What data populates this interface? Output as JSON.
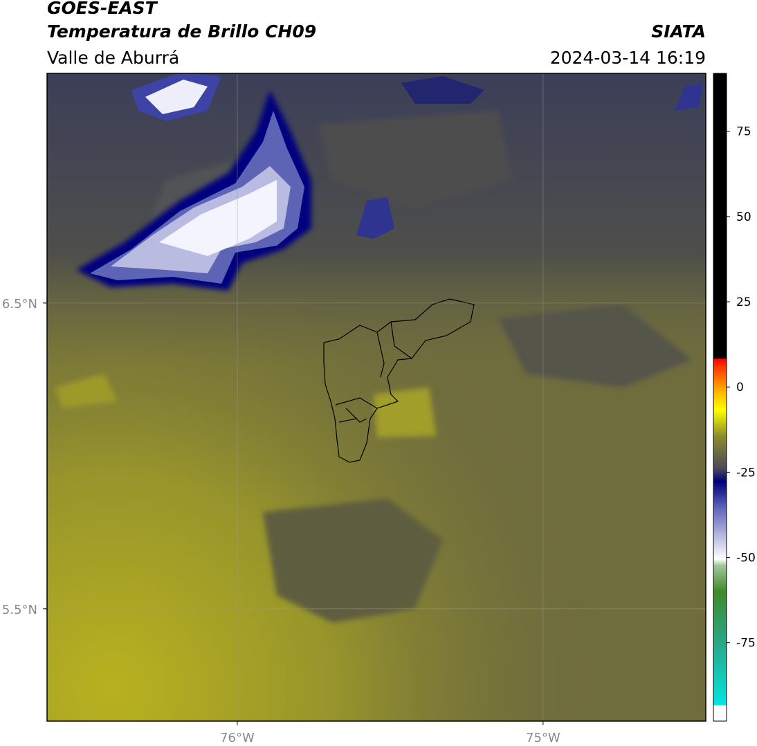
{
  "header": {
    "satellite": "GOES-EAST",
    "product": "Temperatura de Brillo CH09",
    "region": "Valle de Aburrá",
    "agency": "SIATA",
    "timestamp": "2024-03-14 16:19"
  },
  "map": {
    "xlim": [
      -76.622,
      -74.468
    ],
    "ylim": [
      5.133,
      7.251
    ],
    "xticks": [
      {
        "value": -76,
        "label": "76°W"
      },
      {
        "value": -75,
        "label": "75°W"
      }
    ],
    "yticks": [
      {
        "value": 6.5,
        "label": "6.5°N"
      },
      {
        "value": 5.5,
        "label": "5.5°N"
      }
    ],
    "grid": true
  },
  "colorbar": {
    "lim": [
      -98,
      92
    ],
    "ticks": [
      75,
      50,
      25,
      0,
      -25,
      -50,
      -75
    ]
  }
}
